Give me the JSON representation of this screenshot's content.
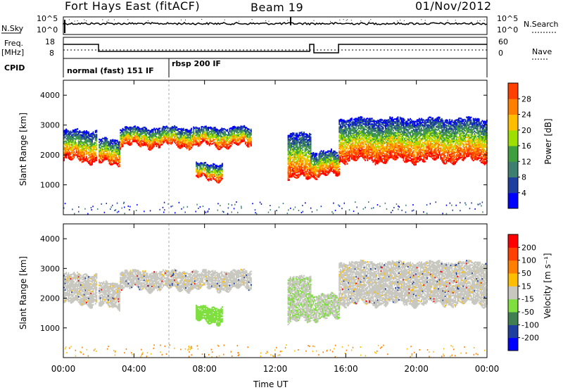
{
  "header": {
    "station": "Fort Hays East (fitACF)",
    "beam": "Beam 19",
    "date": "01/Nov/2012"
  },
  "left_labels": {
    "nsky": "N.Sky",
    "freq": "Freq.",
    "freq_unit": "[MHz]",
    "cpid": "CPID"
  },
  "right_labels": {
    "nsearch": "N.Search",
    "nave": "Nave"
  },
  "strip_ticks": {
    "noise_top": "10^5",
    "noise_bottom": "10^0",
    "freq_top": "18",
    "freq_bottom": "8",
    "nave_top": "60",
    "nave_bottom": "0"
  },
  "cpid_modes": [
    "normal (fast) 151 IF",
    "rbsp 200 IF"
  ],
  "colors": {
    "power_scale": [
      "#0000ff",
      "#1f3f9f",
      "#3f7f6f",
      "#3f9f3f",
      "#9fdf00",
      "#ffbf00",
      "#ff7f00",
      "#ff4000",
      "#ff0000"
    ],
    "velocity_scale": [
      "#0000ff",
      "#1f3fa0",
      "#3f7f50",
      "#7fdf3f",
      "#c8c8c0",
      "#ffbf00",
      "#ff7f00",
      "#ff4000",
      "#ff0000"
    ]
  },
  "chart_data": [
    {
      "type": "heatmap",
      "name": "power",
      "ylabel": "Slant Range [km]",
      "colorbar_label": "Power [dB]",
      "colorbar_ticks": [
        "4",
        "8",
        "12",
        "16",
        "20",
        "24",
        "28"
      ],
      "y_ticks": [
        "1000",
        "2000",
        "3000",
        "4000"
      ],
      "ylim": [
        0,
        4500
      ],
      "xlim_hours": [
        0,
        24
      ],
      "echo_bands": [
        {
          "t0": 0.0,
          "t1": 1.9,
          "lower_km": 1800,
          "upper_km": 2800
        },
        {
          "t0": 2.0,
          "t1": 3.2,
          "lower_km": 1700,
          "upper_km": 2500
        },
        {
          "t0": 3.2,
          "t1": 10.6,
          "lower_km": 2300,
          "upper_km": 2900
        },
        {
          "t0": 7.5,
          "t1": 9.0,
          "lower_km": 1200,
          "upper_km": 1700
        },
        {
          "t0": 12.7,
          "t1": 14.0,
          "lower_km": 1200,
          "upper_km": 2700
        },
        {
          "t0": 14.0,
          "t1": 15.6,
          "lower_km": 1300,
          "upper_km": 2100
        },
        {
          "t0": 15.6,
          "t1": 24.0,
          "lower_km": 1800,
          "upper_km": 3200
        }
      ]
    },
    {
      "type": "heatmap",
      "name": "velocity",
      "ylabel": "Slant Range [km]",
      "colorbar_label": "Velocity [m s⁻¹]",
      "colorbar_ticks": [
        "-200",
        "-100",
        "-50",
        "-15",
        "15",
        "50",
        "100",
        "200"
      ],
      "y_ticks": [
        "1000",
        "2000",
        "3000",
        "4000"
      ],
      "ylim": [
        0,
        4500
      ],
      "xlim_hours": [
        0,
        24
      ],
      "x_ticks": [
        "00:00",
        "04:00",
        "08:00",
        "12:00",
        "16:00",
        "20:00",
        "00:00"
      ],
      "xlabel": "Time UT"
    }
  ]
}
